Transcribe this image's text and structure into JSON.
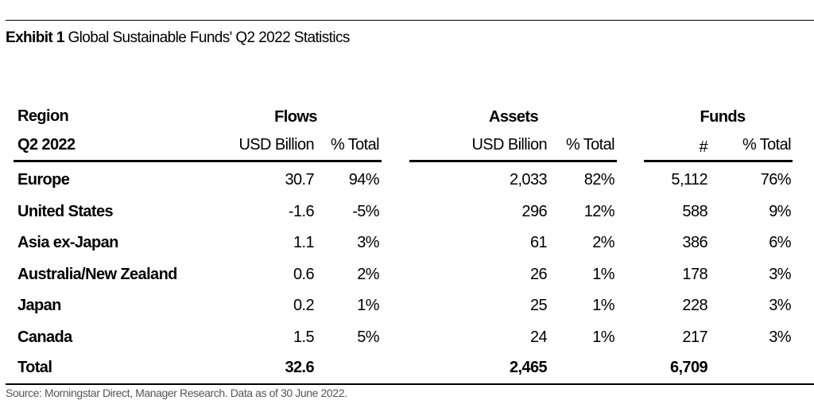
{
  "exhibit": {
    "label": "Exhibit 1",
    "title": "Global Sustainable Funds' Q2 2022 Statistics"
  },
  "table": {
    "region_header": "Region",
    "period_header": "Q2 2022",
    "groups": [
      {
        "name": "Flows",
        "columns": [
          "USD Billion",
          "% Total"
        ]
      },
      {
        "name": "Assets",
        "columns": [
          "USD Billion",
          "% Total"
        ]
      },
      {
        "name": "Funds",
        "columns": [
          "#",
          "% Total"
        ]
      }
    ],
    "rows": [
      {
        "region": "Europe",
        "values": [
          "30.7",
          "94%",
          "2,033",
          "82%",
          "5,112",
          "76%"
        ]
      },
      {
        "region": "United States",
        "values": [
          "-1.6",
          "-5%",
          "296",
          "12%",
          "588",
          "9%"
        ]
      },
      {
        "region": "Asia ex-Japan",
        "values": [
          "1.1",
          "3%",
          "61",
          "2%",
          "386",
          "6%"
        ]
      },
      {
        "region": "Australia/New Zealand",
        "values": [
          "0.6",
          "2%",
          "26",
          "1%",
          "178",
          "3%"
        ]
      },
      {
        "region": "Japan",
        "values": [
          "0.2",
          "1%",
          "25",
          "1%",
          "228",
          "3%"
        ]
      },
      {
        "region": "Canada",
        "values": [
          "1.5",
          "5%",
          "24",
          "1%",
          "217",
          "3%"
        ]
      }
    ],
    "total": {
      "region": "Total",
      "values": [
        "32.6",
        "",
        "2,465",
        "",
        "6,709",
        ""
      ]
    }
  },
  "source": "Source: Morningstar Direct, Manager Research. Data as of 30 June 2022."
}
